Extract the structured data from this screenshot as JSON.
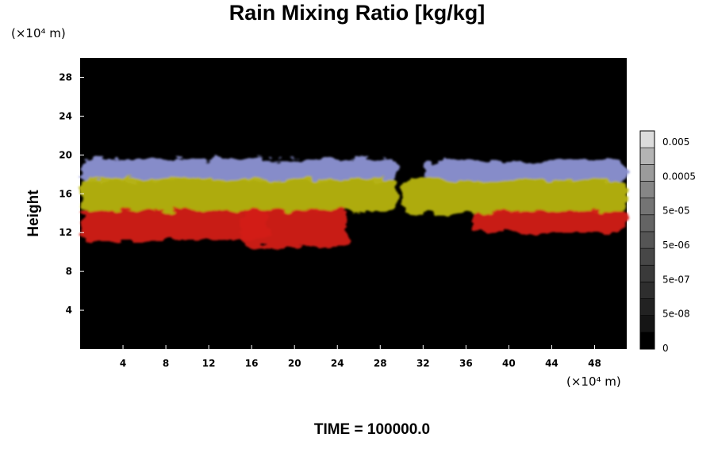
{
  "chart_data": {
    "type": "heatmap",
    "title": "Rain Mixing Ratio [kg/kg]",
    "ylabel": "Height",
    "y_unit": "(×10⁴ m)",
    "x_unit": "(×10⁴ m)",
    "footer": "TIME = 100000.0",
    "xlim": [
      0,
      51
    ],
    "ylim": [
      0,
      30
    ],
    "x_ticks": [
      4,
      8,
      12,
      16,
      20,
      24,
      28,
      32,
      36,
      40,
      44,
      48
    ],
    "y_ticks": [
      4,
      8,
      12,
      16,
      20,
      24,
      28
    ],
    "colorbar": {
      "labels": [
        "0.005",
        "0.0005",
        "5e-05",
        "5e-06",
        "5e-07",
        "5e-08",
        "0"
      ],
      "levels": 13,
      "colors": [
        "#000000",
        "#151515",
        "#222222",
        "#2e2e2e",
        "#3a3a3a",
        "#474747",
        "#555555",
        "#646464",
        "#747474",
        "#868686",
        "#9b9b9b",
        "#b4b4b4",
        "#dcdcdc"
      ]
    },
    "bands": [
      {
        "name": "blue",
        "color": "#8d93d4",
        "segments": [
          {
            "x0": 0,
            "x1": 29.5,
            "y0": 17.3,
            "y1": 19.6
          },
          {
            "x0": 32,
            "x1": 51,
            "y0": 17.3,
            "y1": 19.4
          }
        ]
      },
      {
        "name": "yellow",
        "color": "#b7b40a",
        "segments": [
          {
            "x0": 0,
            "x1": 29.5,
            "y0": 14.2,
            "y1": 17.6
          },
          {
            "x0": 30,
            "x1": 51,
            "y0": 14.0,
            "y1": 17.5
          }
        ]
      },
      {
        "name": "red",
        "color": "#d31b16",
        "segments": [
          {
            "x0": 0,
            "x1": 17.5,
            "y0": 11.2,
            "y1": 14.3
          },
          {
            "x0": 15,
            "x1": 25,
            "y0": 10.5,
            "y1": 14.4
          },
          {
            "x0": 36.5,
            "x1": 51,
            "y0": 12.1,
            "y1": 14.2
          }
        ]
      }
    ]
  }
}
